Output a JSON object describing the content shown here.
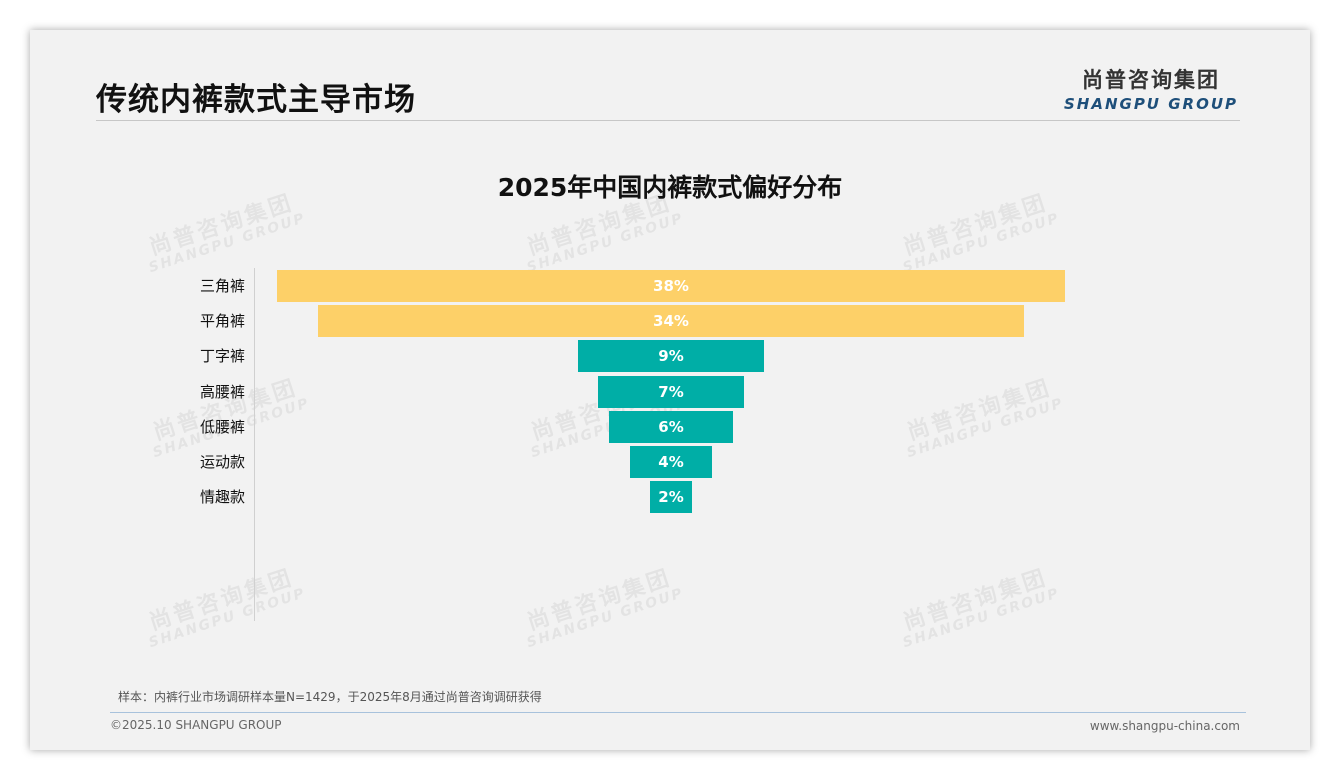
{
  "header": {
    "title": "传统内裤款式主导市场",
    "logo_cn": "尚普咨询集团",
    "logo_en": "SHANGPU GROUP"
  },
  "watermark": {
    "cn": "尚普咨询集团",
    "en": "SHANGPU GROUP"
  },
  "chart_data": {
    "type": "bar",
    "orientation": "horizontal-centered-funnel",
    "title": "2025年中国内裤款式偏好分布",
    "categories": [
      "三角裤",
      "平角裤",
      "丁字裤",
      "高腰裤",
      "低腰裤",
      "运动款",
      "情趣款"
    ],
    "values": [
      38,
      34,
      9,
      7,
      6,
      4,
      2
    ],
    "value_labels": [
      "38%",
      "34%",
      "9%",
      "7%",
      "6%",
      "4%",
      "2%"
    ],
    "unit": "%",
    "colors": [
      "#FDD068",
      "#FDD068",
      "#00AEA6",
      "#00AEA6",
      "#00AEA6",
      "#00AEA6",
      "#00AEA6"
    ],
    "legend": "none",
    "grid": false
  },
  "footer": {
    "note": "样本：内裤行业市场调研样本量N=1429，于2025年8月通过尚普咨询调研获得",
    "copyright": "©2025.10 SHANGPU GROUP",
    "website": "www.shangpu-china.com"
  }
}
